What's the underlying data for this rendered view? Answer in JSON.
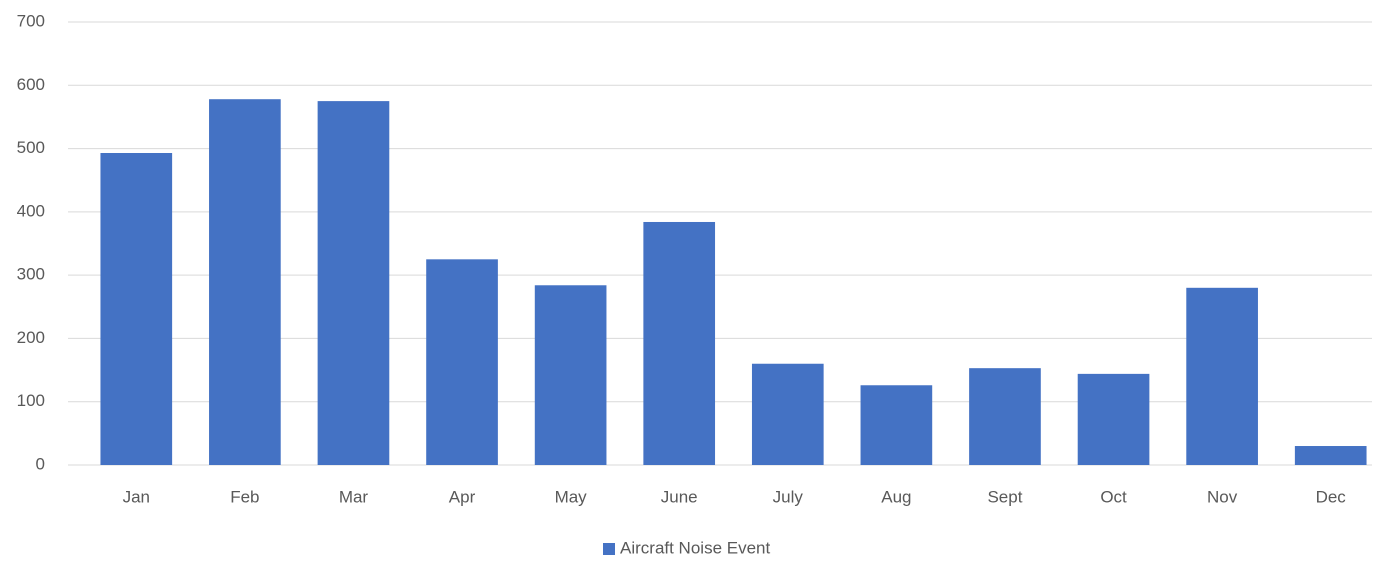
{
  "chart_data": {
    "type": "bar",
    "categories": [
      "Jan",
      "Feb",
      "Mar",
      "Apr",
      "May",
      "June",
      "July",
      "Aug",
      "Sept",
      "Oct",
      "Nov",
      "Dec"
    ],
    "series": [
      {
        "name": "Aircraft Noise Event",
        "color": "#4472c4",
        "values": [
          493,
          578,
          575,
          325,
          284,
          384,
          160,
          126,
          153,
          144,
          280,
          30
        ]
      }
    ],
    "ylim": [
      0,
      700
    ],
    "yticks": [
      0,
      100,
      200,
      300,
      400,
      500,
      600,
      700
    ],
    "grid": true,
    "legend": "bottom"
  }
}
